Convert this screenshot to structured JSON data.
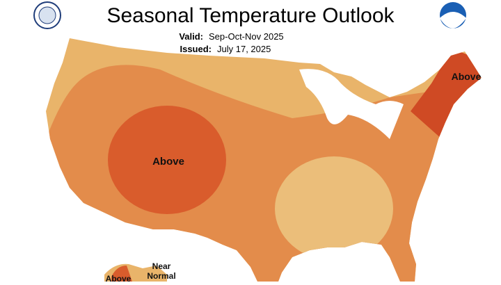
{
  "header": {
    "title": "Seasonal Temperature Outlook",
    "valid_label": "Valid:",
    "valid_value": "Sep-Oct-Nov 2025",
    "issued_label": "Issued:",
    "issued_value": "July 17, 2025"
  },
  "map": {
    "west_label": "Above",
    "northeast_label": "Above",
    "alaska_label": "Above",
    "alaska_near_1": "Near",
    "alaska_near_2": "Normal"
  }
}
